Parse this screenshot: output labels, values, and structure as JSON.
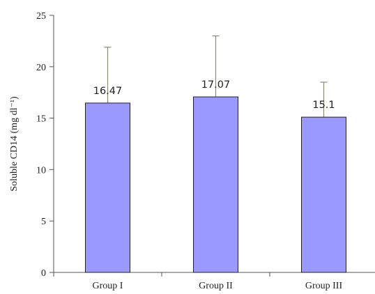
{
  "chart_data": {
    "type": "bar",
    "categories": [
      "Group I",
      "Group II",
      "Group III"
    ],
    "values": [
      16.47,
      17.07,
      15.1
    ],
    "value_labels": [
      "16.47",
      "17.07",
      "15.1"
    ],
    "error_upper": [
      21.9,
      23.0,
      18.5
    ],
    "ylabel": "Soluble CD14 (mg dl⁻¹)",
    "ylim": [
      0,
      25
    ],
    "yticks": [
      "0",
      "5",
      "10",
      "15",
      "20",
      "25"
    ],
    "ytick_values": [
      0,
      5,
      10,
      15,
      20,
      25
    ],
    "grid": false,
    "legend": "none",
    "colors": {
      "bar_fill": "#9999ff",
      "bar_stroke": "#222222",
      "axis": "#555555",
      "error_bar": "#8a8a72"
    }
  }
}
